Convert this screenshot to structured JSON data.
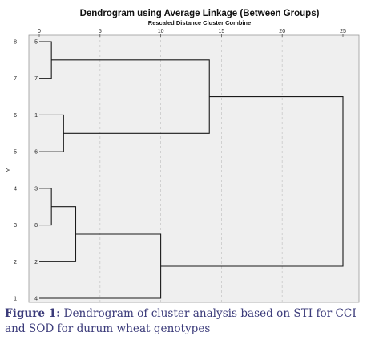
{
  "chart_data": {
    "type": "dendrogram",
    "title": "Dendrogram using Average Linkage (Between Groups)",
    "subtitle": "Rescaled Distance Cluster Combine",
    "xlabel": "",
    "ylabel": "Y",
    "xlim": [
      0,
      25
    ],
    "x_ticks": [
      "0",
      "5",
      "10",
      "15",
      "20",
      "25"
    ],
    "left_row_labels": [
      "8",
      "7",
      "6",
      "5",
      "4",
      "3",
      "2",
      "1"
    ],
    "leaves": [
      "5",
      "7",
      "1",
      "6",
      "3",
      "8",
      "2",
      "4"
    ],
    "merges": [
      {
        "a": "5",
        "b": "7",
        "distance": 1
      },
      {
        "a": "1",
        "b": "6",
        "distance": 2
      },
      {
        "a": "{5,7}",
        "b": "{1,6}",
        "distance": 14
      },
      {
        "a": "3",
        "b": "8",
        "distance": 1
      },
      {
        "a": "{3,8}",
        "b": "2",
        "distance": 3
      },
      {
        "a": "{3,8,2}",
        "b": "4",
        "distance": 10
      },
      {
        "a": "{5,7,1,6}",
        "b": "{3,8,2,4}",
        "distance": 25
      }
    ],
    "grid": true,
    "background": "#efefef",
    "grid_color": "#c8c8c8"
  },
  "caption": {
    "label": "Figure 1:",
    "text": " Dendrogram of cluster analysis based on STI for CCI and SOD for durum wheat genotypes"
  }
}
